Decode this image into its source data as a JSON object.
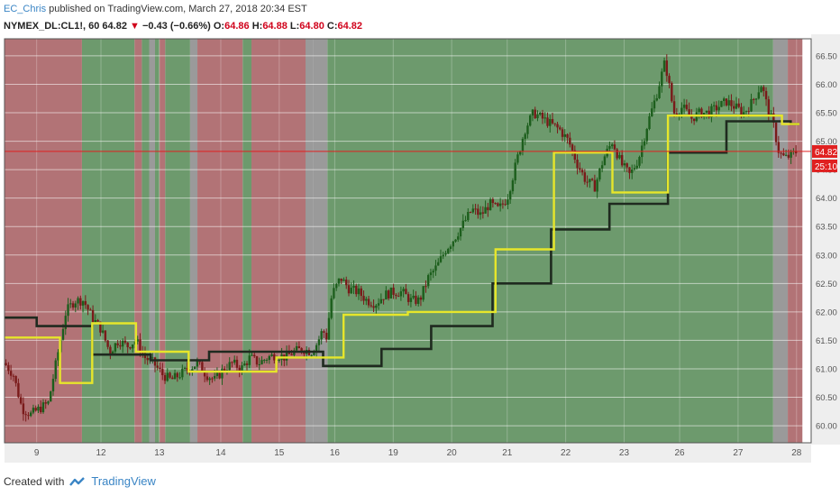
{
  "header": {
    "user": "EC_Chris",
    "published_text": "published on TradingView.com, March 27, 2018 20:34 EST"
  },
  "ohlc": {
    "symbol_interval": "NYMEX_DL:CL1!, 60",
    "last": "64.82",
    "arrow": "▼",
    "change": "−0.43 (−0.66%)",
    "o_label": "O:",
    "o": "64.86",
    "h_label": "H:",
    "h": "64.88",
    "l_label": "L:",
    "l": "64.80",
    "c_label": "C:",
    "c": "64.82"
  },
  "footer": {
    "created_with": "Created with",
    "brand": "TradingView"
  },
  "colors": {
    "red_zone": "#b27376",
    "green_zone": "#6d9a6d",
    "gray_zone": "#9a9a9a",
    "yellow_line": "#e6e62b",
    "dark_line": "#1f2a1f",
    "candle_up": "#1c5e1c",
    "candle_down": "#7a1a1a",
    "price_line": "#e02020"
  },
  "chart_data": {
    "type": "candlestick",
    "symbol": "NYMEX_DL:CL1!",
    "interval": "60",
    "ylim": [
      59.7,
      66.8
    ],
    "y_ticks": [
      "60.00",
      "60.50",
      "61.00",
      "61.50",
      "62.00",
      "62.50",
      "63.00",
      "63.50",
      "64.00",
      "64.50",
      "65.00",
      "65.50",
      "66.00",
      "66.50"
    ],
    "x_ticks": [
      "9",
      "12",
      "13",
      "14",
      "15",
      "16",
      "19",
      "20",
      "21",
      "22",
      "23",
      "26",
      "27",
      "28"
    ],
    "current_price": 64.82,
    "current_price_label": "64.82",
    "countdown_label": "25:10",
    "price_path": [
      [
        0.0,
        61.1
      ],
      [
        0.3,
        60.9
      ],
      [
        0.6,
        60.3
      ],
      [
        0.9,
        60.2
      ],
      [
        1.2,
        60.3
      ],
      [
        1.5,
        60.4
      ],
      [
        1.8,
        61.2
      ],
      [
        2.1,
        62.0
      ],
      [
        2.4,
        62.2
      ],
      [
        2.7,
        62.2
      ],
      [
        3.0,
        61.9
      ],
      [
        3.3,
        61.7
      ],
      [
        3.6,
        61.3
      ],
      [
        3.9,
        61.5
      ],
      [
        4.2,
        61.4
      ],
      [
        4.5,
        61.5
      ],
      [
        4.8,
        61.2
      ],
      [
        5.1,
        61.1
      ],
      [
        5.4,
        60.9
      ],
      [
        5.7,
        60.8
      ],
      [
        6.0,
        60.9
      ],
      [
        6.3,
        61.0
      ],
      [
        6.6,
        61.1
      ],
      [
        6.9,
        60.9
      ],
      [
        7.2,
        60.8
      ],
      [
        7.5,
        61.0
      ],
      [
        7.8,
        61.1
      ],
      [
        8.1,
        61.0
      ],
      [
        8.4,
        61.2
      ],
      [
        8.7,
        61.1
      ],
      [
        9.0,
        61.2
      ],
      [
        9.3,
        61.25
      ],
      [
        9.6,
        61.2
      ],
      [
        9.9,
        61.3
      ],
      [
        10.2,
        61.35
      ],
      [
        10.5,
        61.3
      ],
      [
        10.7,
        61.45
      ],
      [
        10.9,
        61.7
      ],
      [
        11.0,
        61.5
      ],
      [
        11.2,
        62.3
      ],
      [
        11.5,
        62.6
      ],
      [
        11.8,
        62.4
      ],
      [
        12.1,
        62.35
      ],
      [
        12.4,
        62.2
      ],
      [
        12.7,
        62.15
      ],
      [
        13.0,
        62.3
      ],
      [
        13.3,
        62.35
      ],
      [
        13.6,
        62.35
      ],
      [
        13.9,
        62.2
      ],
      [
        14.2,
        62.2
      ],
      [
        14.5,
        62.6
      ],
      [
        14.8,
        62.8
      ],
      [
        15.1,
        63.1
      ],
      [
        15.4,
        63.3
      ],
      [
        15.7,
        63.55
      ],
      [
        16.0,
        63.8
      ],
      [
        16.3,
        63.7
      ],
      [
        16.6,
        63.9
      ],
      [
        16.9,
        63.8
      ],
      [
        17.2,
        64.0
      ],
      [
        17.5,
        64.6
      ],
      [
        17.8,
        65.2
      ],
      [
        18.1,
        65.5
      ],
      [
        18.4,
        65.4
      ],
      [
        18.7,
        65.3
      ],
      [
        19.0,
        65.2
      ],
      [
        19.3,
        65.0
      ],
      [
        19.6,
        64.6
      ],
      [
        19.9,
        64.3
      ],
      [
        20.2,
        64.2
      ],
      [
        20.5,
        64.7
      ],
      [
        20.8,
        65.0
      ],
      [
        21.1,
        64.6
      ],
      [
        21.4,
        64.4
      ],
      [
        21.7,
        64.7
      ],
      [
        22.0,
        65.3
      ],
      [
        22.3,
        65.8
      ],
      [
        22.6,
        66.4
      ],
      [
        22.9,
        65.5
      ],
      [
        23.2,
        65.6
      ],
      [
        23.5,
        65.4
      ],
      [
        23.8,
        65.5
      ],
      [
        24.1,
        65.5
      ],
      [
        24.4,
        65.6
      ],
      [
        24.7,
        65.7
      ],
      [
        25.0,
        65.6
      ],
      [
        25.3,
        65.5
      ],
      [
        25.6,
        65.7
      ],
      [
        25.9,
        66.0
      ],
      [
        26.1,
        65.6
      ],
      [
        26.3,
        65.3
      ],
      [
        26.5,
        64.8
      ],
      [
        26.7,
        64.7
      ],
      [
        26.9,
        64.75
      ],
      [
        27.1,
        64.82
      ]
    ],
    "yellow_line": [
      [
        0,
        61.55
      ],
      [
        1.9,
        61.55
      ],
      [
        1.9,
        60.75
      ],
      [
        3.0,
        60.75
      ],
      [
        3.0,
        61.8
      ],
      [
        4.5,
        61.8
      ],
      [
        4.5,
        61.3
      ],
      [
        6.3,
        61.3
      ],
      [
        6.3,
        60.95
      ],
      [
        9.3,
        60.95
      ],
      [
        9.3,
        61.2
      ],
      [
        11.6,
        61.2
      ],
      [
        11.6,
        61.95
      ],
      [
        13.8,
        61.95
      ],
      [
        13.8,
        62.0
      ],
      [
        15.2,
        62.0
      ],
      [
        15.2,
        62.0
      ],
      [
        16.8,
        62.0
      ],
      [
        16.8,
        63.1
      ],
      [
        18.8,
        63.1
      ],
      [
        18.8,
        64.8
      ],
      [
        20.8,
        64.8
      ],
      [
        20.8,
        64.1
      ],
      [
        22.7,
        64.1
      ],
      [
        22.7,
        65.45
      ],
      [
        26.6,
        65.45
      ],
      [
        26.6,
        65.3
      ],
      [
        27.2,
        65.3
      ]
    ],
    "dark_line": [
      [
        0,
        61.9
      ],
      [
        1.1,
        61.9
      ],
      [
        1.1,
        61.75
      ],
      [
        3.0,
        61.75
      ],
      [
        3.0,
        61.25
      ],
      [
        5.0,
        61.25
      ],
      [
        5.0,
        61.15
      ],
      [
        7.0,
        61.15
      ],
      [
        7.0,
        61.3
      ],
      [
        10.9,
        61.3
      ],
      [
        10.9,
        61.05
      ],
      [
        12.9,
        61.05
      ],
      [
        12.9,
        61.35
      ],
      [
        14.6,
        61.35
      ],
      [
        14.6,
        61.75
      ],
      [
        16.7,
        61.75
      ],
      [
        16.7,
        62.5
      ],
      [
        18.7,
        62.5
      ],
      [
        18.7,
        63.45
      ],
      [
        20.7,
        63.45
      ],
      [
        20.7,
        63.9
      ],
      [
        22.7,
        63.9
      ],
      [
        22.7,
        64.8
      ],
      [
        24.7,
        64.8
      ],
      [
        24.7,
        65.35
      ],
      [
        26.9,
        65.35
      ],
      [
        26.9,
        65.3
      ],
      [
        27.2,
        65.3
      ]
    ],
    "zones": [
      {
        "from": 0.0,
        "to": 2.65,
        "state": "red"
      },
      {
        "from": 2.65,
        "to": 4.45,
        "state": "green"
      },
      {
        "from": 4.45,
        "to": 4.7,
        "state": "red"
      },
      {
        "from": 4.7,
        "to": 4.95,
        "state": "green"
      },
      {
        "from": 4.95,
        "to": 5.15,
        "state": "gray"
      },
      {
        "from": 5.15,
        "to": 5.3,
        "state": "green"
      },
      {
        "from": 5.3,
        "to": 5.5,
        "state": "red"
      },
      {
        "from": 5.5,
        "to": 6.35,
        "state": "green"
      },
      {
        "from": 6.35,
        "to": 6.6,
        "state": "gray"
      },
      {
        "from": 6.6,
        "to": 8.15,
        "state": "red"
      },
      {
        "from": 8.15,
        "to": 8.45,
        "state": "green"
      },
      {
        "from": 8.45,
        "to": 10.3,
        "state": "red"
      },
      {
        "from": 10.3,
        "to": 10.55,
        "state": "gray"
      },
      {
        "from": 10.55,
        "to": 11.05,
        "state": "gray"
      },
      {
        "from": 11.05,
        "to": 26.3,
        "state": "green"
      },
      {
        "from": 26.3,
        "to": 26.8,
        "state": "gray"
      },
      {
        "from": 26.8,
        "to": 27.3,
        "state": "red"
      }
    ],
    "x_tick_positions": [
      1.1,
      3.3,
      5.3,
      7.4,
      9.4,
      11.3,
      13.3,
      15.3,
      17.2,
      19.2,
      21.2,
      23.1,
      25.1,
      27.1
    ],
    "x_range": [
      0,
      27.6
    ]
  }
}
